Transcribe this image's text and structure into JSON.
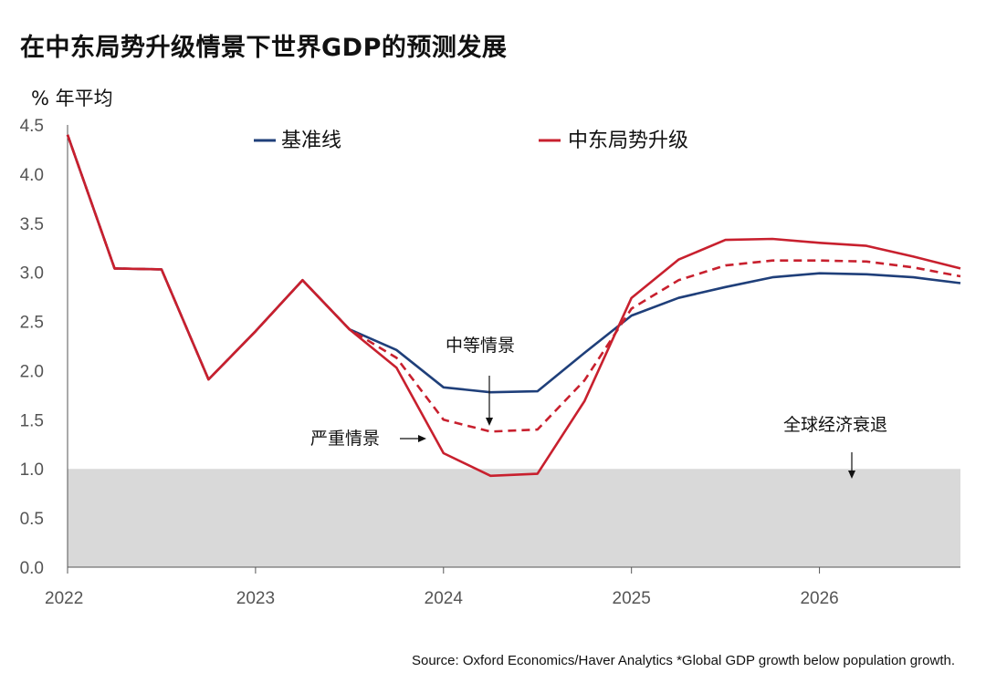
{
  "title": "在中东局势升级情景下世界GDP的预测发展",
  "unit_label": "% 年平均",
  "source": "Source: Oxford Economics/Haver Analytics *Global GDP growth below population growth.",
  "colors": {
    "baseline": "#1f3f7a",
    "escalation": "#c8202e",
    "recession_band": "#d9d9d9",
    "axis": "#555555"
  },
  "chart_data": {
    "type": "line",
    "title": "在中东局势升级情景下世界GDP的预测发展",
    "ylabel": "% 年平均",
    "ylim": [
      0,
      4.5
    ],
    "yticks": [
      "0.0",
      "0.5",
      "1.0",
      "1.5",
      "2.0",
      "2.5",
      "3.0",
      "3.5",
      "4.0",
      "4.5"
    ],
    "xlim": [
      2022,
      2026.75
    ],
    "xticks": [
      "2022",
      "2023",
      "2024",
      "2025",
      "2026"
    ],
    "grid": false,
    "legend": [
      {
        "name": "基准线",
        "color": "#1f3f7a"
      },
      {
        "name": "中东局势升级",
        "color": "#c8202e"
      }
    ],
    "x": [
      2022.0,
      2022.25,
      2022.5,
      2022.75,
      2023.0,
      2023.25,
      2023.5,
      2023.75,
      2024.0,
      2024.25,
      2024.5,
      2024.75,
      2025.0,
      2025.25,
      2025.5,
      2025.75,
      2026.0,
      2026.25,
      2026.5,
      2026.75
    ],
    "series": [
      {
        "name": "基准线",
        "style": "solid",
        "color": "#1f3f7a",
        "values": [
          4.4,
          3.04,
          3.03,
          1.91,
          2.4,
          2.92,
          2.42,
          2.21,
          1.83,
          1.78,
          1.79,
          2.18,
          2.56,
          2.74,
          2.85,
          2.95,
          2.99,
          2.98,
          2.95,
          2.89
        ]
      },
      {
        "name": "中等情景",
        "style": "dashed",
        "color": "#c8202e",
        "values": [
          4.4,
          3.04,
          3.03,
          1.91,
          2.4,
          2.92,
          2.42,
          2.13,
          1.5,
          1.38,
          1.4,
          1.9,
          2.63,
          2.92,
          3.07,
          3.12,
          3.12,
          3.11,
          3.05,
          2.96
        ]
      },
      {
        "name": "严重情景",
        "style": "solid",
        "color": "#c8202e",
        "values": [
          4.4,
          3.04,
          3.03,
          1.91,
          2.4,
          2.92,
          2.42,
          2.03,
          1.16,
          0.93,
          0.95,
          1.69,
          2.74,
          3.13,
          3.33,
          3.34,
          3.3,
          3.27,
          3.16,
          3.04
        ]
      }
    ],
    "recession_threshold": 1.0,
    "annotations": {
      "moderate": "中等情景",
      "severe": "严重情景",
      "recession": "全球经济衰退"
    }
  }
}
